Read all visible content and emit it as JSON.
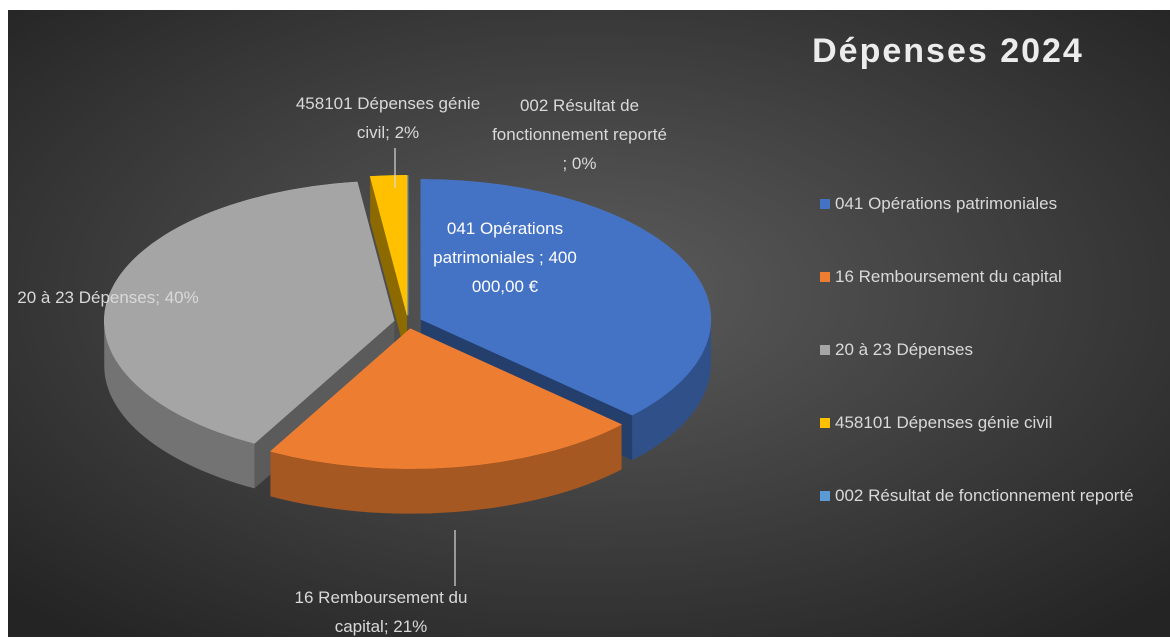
{
  "chart_data": {
    "type": "pie3d",
    "title": "Dépenses 2024",
    "categories": [
      "041 Opérations patrimoniales",
      "16 Remboursement du capital",
      "20 à 23 Dépenses",
      "458101 Dépenses génie civil",
      "002 Résultat de fonctionnement reporté"
    ],
    "values": [
      400000,
      227000,
      432000,
      22000,
      0
    ],
    "value_labels": [
      "041 Opérations patrimoniales ; 400 000,00 €",
      "16 Remboursement du capital; 21%",
      "20 à 23 Dépenses; 40%",
      "458101 Dépenses génie civil; 2%",
      "002 Résultat de fonctionnement reporté ; 0%"
    ],
    "colors": [
      "#4472c4",
      "#ed7d31",
      "#a5a5a5",
      "#ffc000",
      "#5b9bd5"
    ],
    "legend": "right"
  }
}
